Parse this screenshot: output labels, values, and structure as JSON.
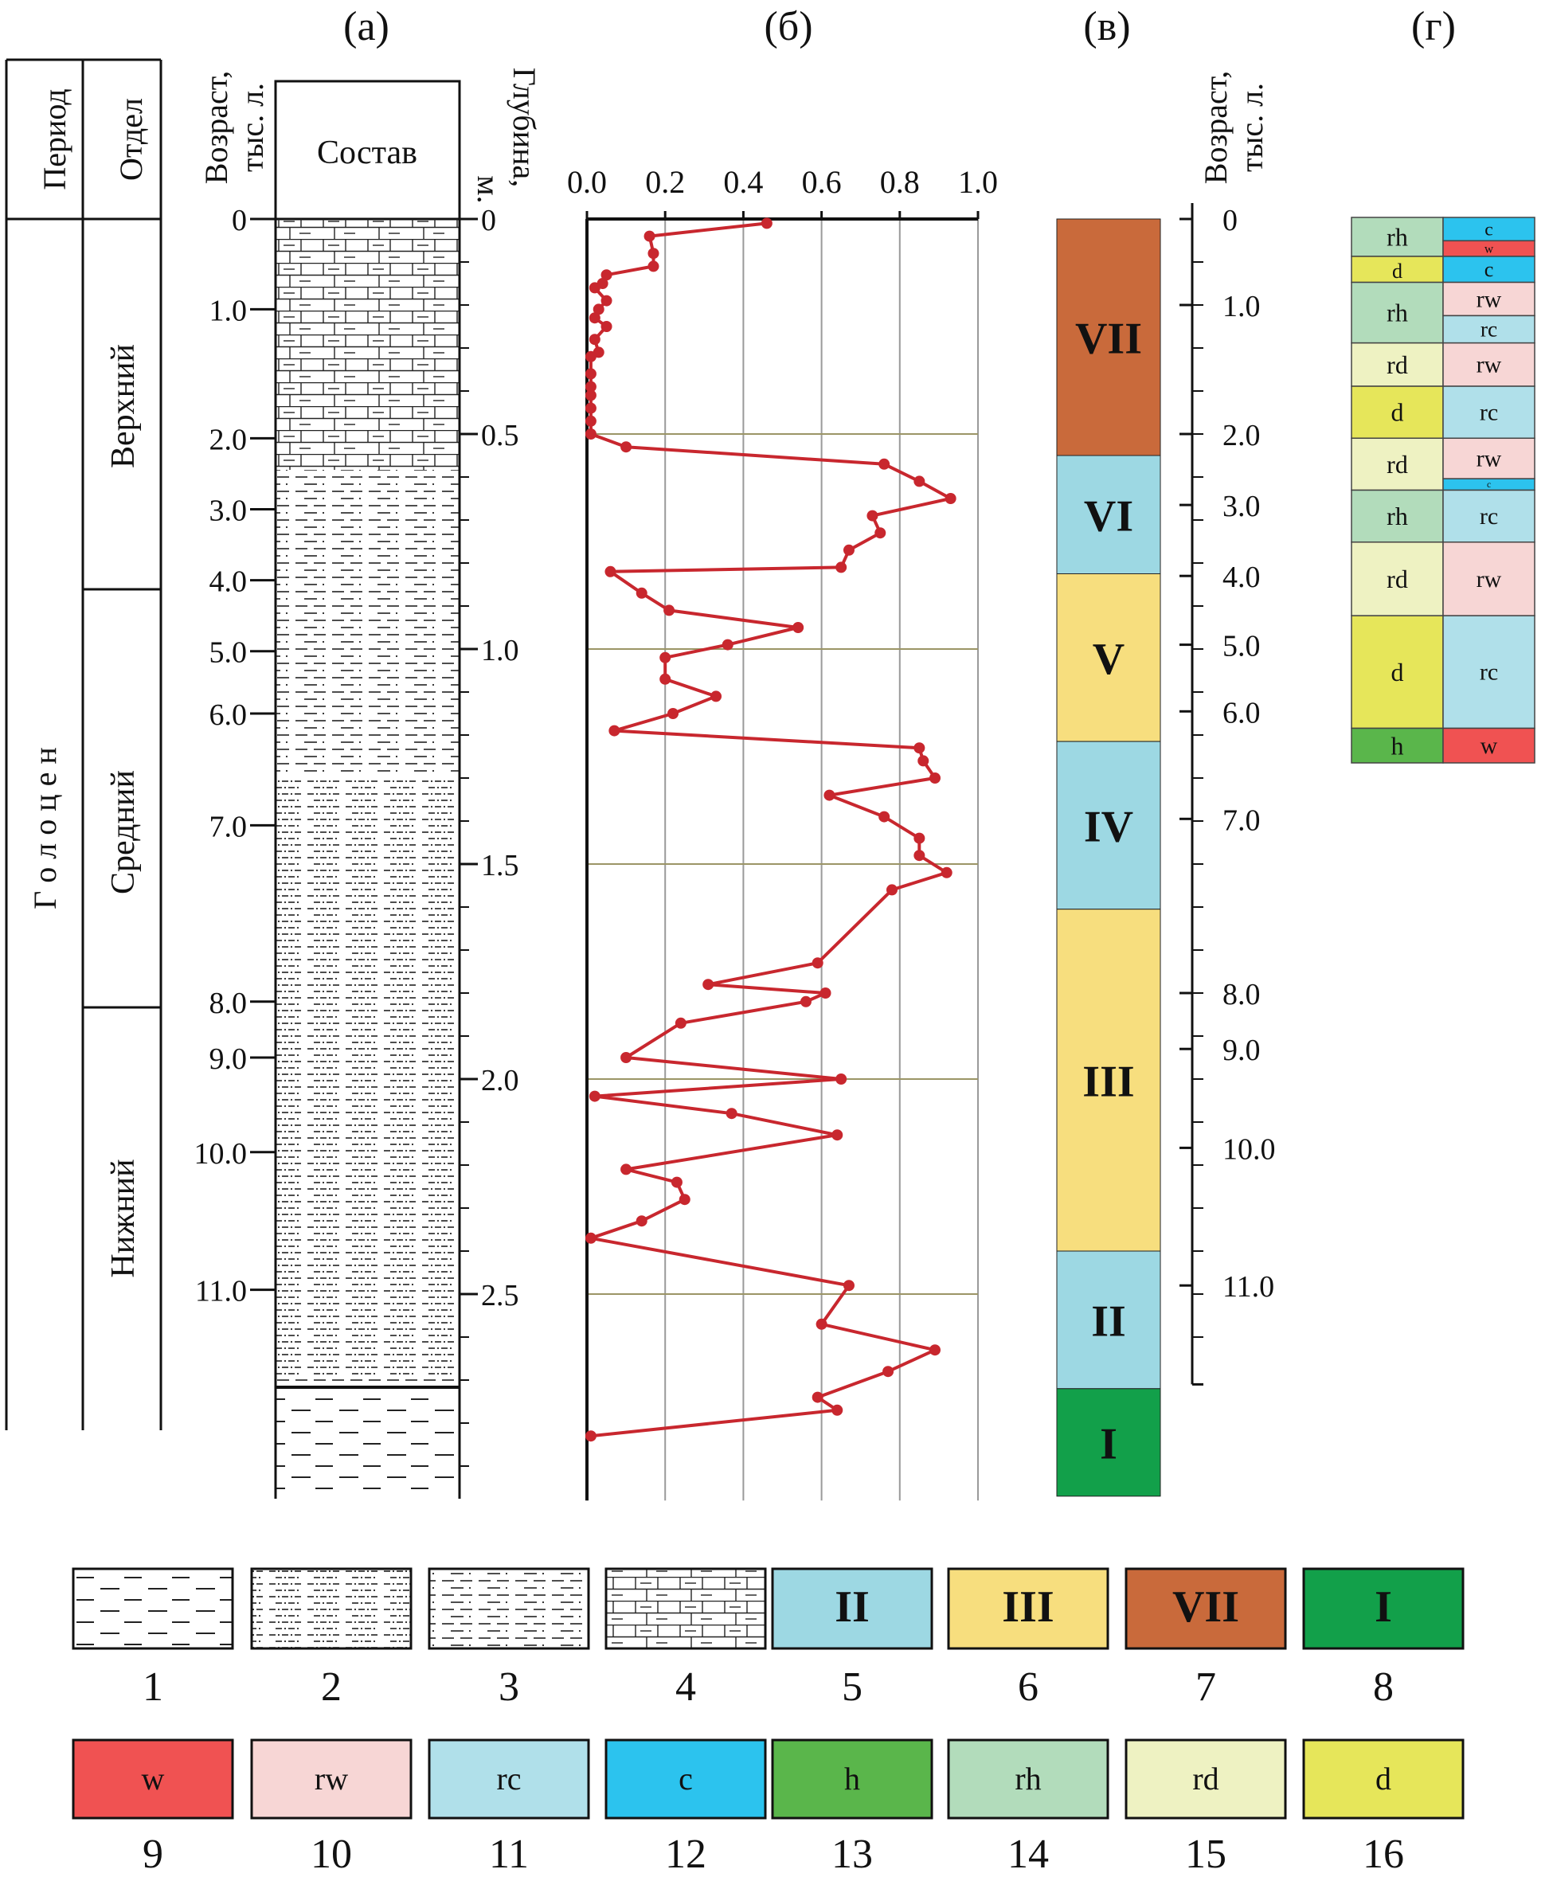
{
  "panel_letters": [
    "(а)",
    "(б)",
    "(в)",
    "(г)"
  ],
  "headers": {
    "period": "Период",
    "section": "Отдел",
    "age_top": "Возраст,",
    "age_bottom": "тыс. л.",
    "composition": "Состав",
    "depth_top": "Глубина,",
    "depth_bottom": "м.",
    "right_age_top": "Возраст,",
    "right_age_bottom": "тыс. л."
  },
  "period_name": "Г о л о ц е н",
  "sections": [
    "Верхний",
    "Средний",
    "Нижний"
  ],
  "age_ticks": [
    {
      "label": "0",
      "depth": 0.0
    },
    {
      "label": "1.0",
      "depth": 0.21
    },
    {
      "label": "2.0",
      "depth": 0.51
    },
    {
      "label": "3.0",
      "depth": 0.675
    },
    {
      "label": "4.0",
      "depth": 0.84
    },
    {
      "label": "5.0",
      "depth": 1.005
    },
    {
      "label": "6.0",
      "depth": 1.15
    },
    {
      "label": "7.0",
      "depth": 1.41
    },
    {
      "label": "8.0",
      "depth": 1.82
    },
    {
      "label": "9.0",
      "depth": 1.95
    },
    {
      "label": "10.0",
      "depth": 2.17
    },
    {
      "label": "11.0",
      "depth": 2.49
    }
  ],
  "depth_ticks": [
    {
      "label": "0",
      "value": 0.0
    },
    {
      "label": "0.5",
      "value": 0.5
    },
    {
      "label": "1.0",
      "value": 1.0
    },
    {
      "label": "1.5",
      "value": 1.5
    },
    {
      "label": "2.0",
      "value": 2.0
    },
    {
      "label": "2.5",
      "value": 2.5
    }
  ],
  "chart_data": {
    "type": "line",
    "title": "",
    "xlabel": "",
    "ylabel": "Глубина, м.",
    "xlim": [
      0.0,
      1.0
    ],
    "ylim": [
      0.0,
      2.98
    ],
    "x_ticks": [
      "0.0",
      "0.2",
      "0.4",
      "0.6",
      "0.8",
      "1.0"
    ],
    "grid": "vertical and at 0.5 m depth steps",
    "series": [
      {
        "color": "#c8272e",
        "points": [
          [
            0.46,
            0.01
          ],
          [
            0.16,
            0.04
          ],
          [
            0.17,
            0.08
          ],
          [
            0.17,
            0.11
          ],
          [
            0.05,
            0.13
          ],
          [
            0.04,
            0.15
          ],
          [
            0.02,
            0.16
          ],
          [
            0.05,
            0.19
          ],
          [
            0.03,
            0.21
          ],
          [
            0.02,
            0.23
          ],
          [
            0.05,
            0.25
          ],
          [
            0.02,
            0.28
          ],
          [
            0.03,
            0.31
          ],
          [
            0.01,
            0.32
          ],
          [
            0.01,
            0.36
          ],
          [
            0.01,
            0.39
          ],
          [
            0.01,
            0.41
          ],
          [
            0.01,
            0.44
          ],
          [
            0.01,
            0.47
          ],
          [
            0.01,
            0.5
          ],
          [
            0.1,
            0.53
          ],
          [
            0.76,
            0.57
          ],
          [
            0.85,
            0.61
          ],
          [
            0.93,
            0.65
          ],
          [
            0.73,
            0.69
          ],
          [
            0.75,
            0.73
          ],
          [
            0.67,
            0.77
          ],
          [
            0.65,
            0.81
          ],
          [
            0.06,
            0.82
          ],
          [
            0.14,
            0.87
          ],
          [
            0.21,
            0.91
          ],
          [
            0.54,
            0.95
          ],
          [
            0.36,
            0.99
          ],
          [
            0.2,
            1.02
          ],
          [
            0.2,
            1.07
          ],
          [
            0.33,
            1.11
          ],
          [
            0.22,
            1.15
          ],
          [
            0.07,
            1.19
          ],
          [
            0.85,
            1.23
          ],
          [
            0.86,
            1.26
          ],
          [
            0.89,
            1.3
          ],
          [
            0.62,
            1.34
          ],
          [
            0.76,
            1.39
          ],
          [
            0.85,
            1.44
          ],
          [
            0.85,
            1.48
          ],
          [
            0.92,
            1.52
          ],
          [
            0.78,
            1.56
          ],
          [
            0.59,
            1.73
          ],
          [
            0.31,
            1.78
          ],
          [
            0.61,
            1.8
          ],
          [
            0.56,
            1.82
          ],
          [
            0.24,
            1.87
          ],
          [
            0.1,
            1.95
          ],
          [
            0.65,
            2.0
          ],
          [
            0.02,
            2.04
          ],
          [
            0.37,
            2.08
          ],
          [
            0.64,
            2.13
          ],
          [
            0.1,
            2.21
          ],
          [
            0.23,
            2.24
          ],
          [
            0.25,
            2.28
          ],
          [
            0.14,
            2.33
          ],
          [
            0.01,
            2.37
          ],
          [
            0.67,
            2.48
          ],
          [
            0.6,
            2.57
          ],
          [
            0.89,
            2.63
          ],
          [
            0.77,
            2.68
          ],
          [
            0.59,
            2.74
          ],
          [
            0.64,
            2.77
          ],
          [
            0.01,
            2.83
          ]
        ]
      }
    ]
  },
  "phases": [
    {
      "label": "VII",
      "top": 0.0,
      "bottom": 0.55,
      "color": "#c96a3b"
    },
    {
      "label": "VI",
      "top": 0.55,
      "bottom": 0.825,
      "color": "#9dd8e3"
    },
    {
      "label": "V",
      "top": 0.825,
      "bottom": 1.215,
      "color": "#f7de7e"
    },
    {
      "label": "IV",
      "top": 1.215,
      "bottom": 1.605,
      "color": "#9dd8e3"
    },
    {
      "label": "III",
      "top": 1.605,
      "bottom": 2.4,
      "color": "#f7de7e"
    },
    {
      "label": "II",
      "top": 2.4,
      "bottom": 2.72,
      "color": "#9dd8e3"
    },
    {
      "label": "I",
      "top": 2.72,
      "bottom": 2.97,
      "color": "#12a04a"
    }
  ],
  "right_age_ticks": [
    {
      "label": "0",
      "depth": 0.0
    },
    {
      "label": "1.0",
      "depth": 0.2
    },
    {
      "label": "2.0",
      "depth": 0.5
    },
    {
      "label": "3.0",
      "depth": 0.665
    },
    {
      "label": "4.0",
      "depth": 0.83
    },
    {
      "label": "5.0",
      "depth": 0.99
    },
    {
      "label": "6.0",
      "depth": 1.145
    },
    {
      "label": "7.0",
      "depth": 1.395
    },
    {
      "label": "8.0",
      "depth": 1.8
    },
    {
      "label": "9.0",
      "depth": 1.93
    },
    {
      "label": "10.0",
      "depth": 2.16
    },
    {
      "label": "11.0",
      "depth": 2.48
    }
  ],
  "zones": [
    {
      "left": "rh",
      "right": [
        {
          "t": "c",
          "h": 0.6
        },
        {
          "t": "w",
          "h": 0.4
        }
      ],
      "h": 0.09
    },
    {
      "left": "d",
      "right": [
        {
          "t": "c",
          "h": 1
        }
      ],
      "h": 0.06
    },
    {
      "left": "rh",
      "right": [
        {
          "t": "rw",
          "h": 0.55
        },
        {
          "t": "rc",
          "h": 0.45
        }
      ],
      "h": 0.14
    },
    {
      "left": "rd",
      "right": [
        {
          "t": "rw",
          "h": 1
        }
      ],
      "h": 0.1
    },
    {
      "left": "d",
      "right": [
        {
          "t": "rc",
          "h": 1
        }
      ],
      "h": 0.12
    },
    {
      "left": "rd",
      "right": [
        {
          "t": "rw",
          "h": 0.78
        },
        {
          "t": "c",
          "h": 0.22
        }
      ],
      "h": 0.12
    },
    {
      "left": "rh",
      "right": [
        {
          "t": "rc",
          "h": 1
        }
      ],
      "h": 0.12
    },
    {
      "left": "rd",
      "right": [
        {
          "t": "rw",
          "h": 1
        }
      ],
      "h": 0.17
    },
    {
      "left": "d",
      "right": [
        {
          "t": "rc",
          "h": 1
        }
      ],
      "h": 0.26
    },
    {
      "left": "h",
      "right": [
        {
          "t": "w",
          "h": 1
        }
      ],
      "h": 0.08
    }
  ],
  "legend_row1": [
    {
      "num": "1",
      "kind": "pattern",
      "pattern": "p1"
    },
    {
      "num": "2",
      "kind": "pattern",
      "pattern": "p2"
    },
    {
      "num": "3",
      "kind": "pattern",
      "pattern": "p3"
    },
    {
      "num": "4",
      "kind": "pattern",
      "pattern": "p4"
    },
    {
      "num": "5",
      "kind": "phase",
      "label": "II",
      "color": "#9dd8e3"
    },
    {
      "num": "6",
      "kind": "phase",
      "label": "III",
      "color": "#f7de7e"
    },
    {
      "num": "7",
      "kind": "phase",
      "label": "VII",
      "color": "#c96a3b"
    },
    {
      "num": "8",
      "kind": "phase",
      "label": "I",
      "color": "#12a04a"
    }
  ],
  "legend_row2": [
    {
      "num": "9",
      "label": "w",
      "color": "#f05252"
    },
    {
      "num": "10",
      "label": "rw",
      "color": "#f7d6d5"
    },
    {
      "num": "11",
      "label": "rc",
      "color": "#b0e0ea"
    },
    {
      "num": "12",
      "label": "c",
      "color": "#2cc3ee"
    },
    {
      "num": "13",
      "label": "h",
      "color": "#5ab64b"
    },
    {
      "num": "14",
      "label": "rh",
      "color": "#b2dcbb"
    },
    {
      "num": "15",
      "label": "rd",
      "color": "#eef2c2"
    },
    {
      "num": "16",
      "label": "d",
      "color": "#e6e65a"
    }
  ],
  "zone_colors": {
    "w": "#f05252",
    "rw": "#f7d6d5",
    "rc": "#b0e0ea",
    "c": "#2cc3ee",
    "h": "#5ab64b",
    "rh": "#b2dcbb",
    "rd": "#eef2c2",
    "d": "#e6e65a"
  }
}
